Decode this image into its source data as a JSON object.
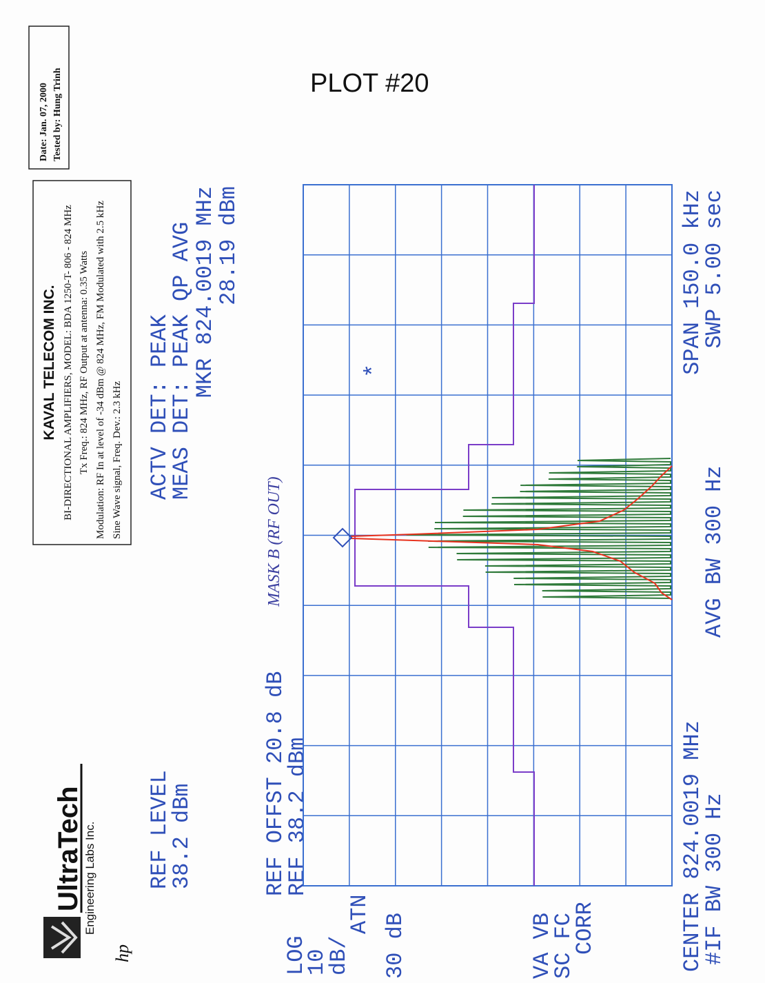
{
  "header": {
    "logo": "UltraTech",
    "logo_sub": "Engineering Labs Inc.",
    "hp": "hp",
    "plot_label": "PLOT #20",
    "date": "Date: Jan. 07, 2000",
    "tested_by": "Tested by: Hung Trinh"
  },
  "test_info": {
    "company": "KAVAL TELECOM INC.",
    "model": "BI-DIRECTIONAL AMPLIFIERS, MODEL: BDA 1250-T- 806 - 824 MHz",
    "tx": "Tx Freq.: 824 MHz, RF Output at antenna: 0.35 Watts",
    "modulation": "Modulation: RF In at level of -34 dBm @ 824 MHz, FM Modulated with 2.5 kHz",
    "signal": "Sine Wave signal, Freq. Dev.: 2.3 kHz"
  },
  "analyzer": {
    "ref_level_label": "REF LEVEL",
    "ref_level": "38.2 dBm",
    "actv_det": "ACTV DET: PEAK",
    "meas_det": "MEAS DET: PEAK QP AVG",
    "marker_freq": "MKR 824.0019 MHz",
    "marker_level": "28.19 dBm",
    "ref_offset": "REF OFFST 20.8 dB",
    "ref": "REF 38.2 dBm",
    "mask_note": "MASK B (RF OUT)",
    "marker_symbol": "*",
    "side_labels": [
      "LOG",
      "10",
      "dB/",
      "ATN",
      "30 dB",
      "VA VB",
      "SC FC",
      "CORR"
    ],
    "center": "CENTER 824.0019 MHz",
    "if_bw": "#IF BW 300 Hz",
    "avg_bw": "AVG BW 300 Hz",
    "span": "SPAN 150.0 kHz",
    "sweep": "SWP 5.00 sec"
  }
}
